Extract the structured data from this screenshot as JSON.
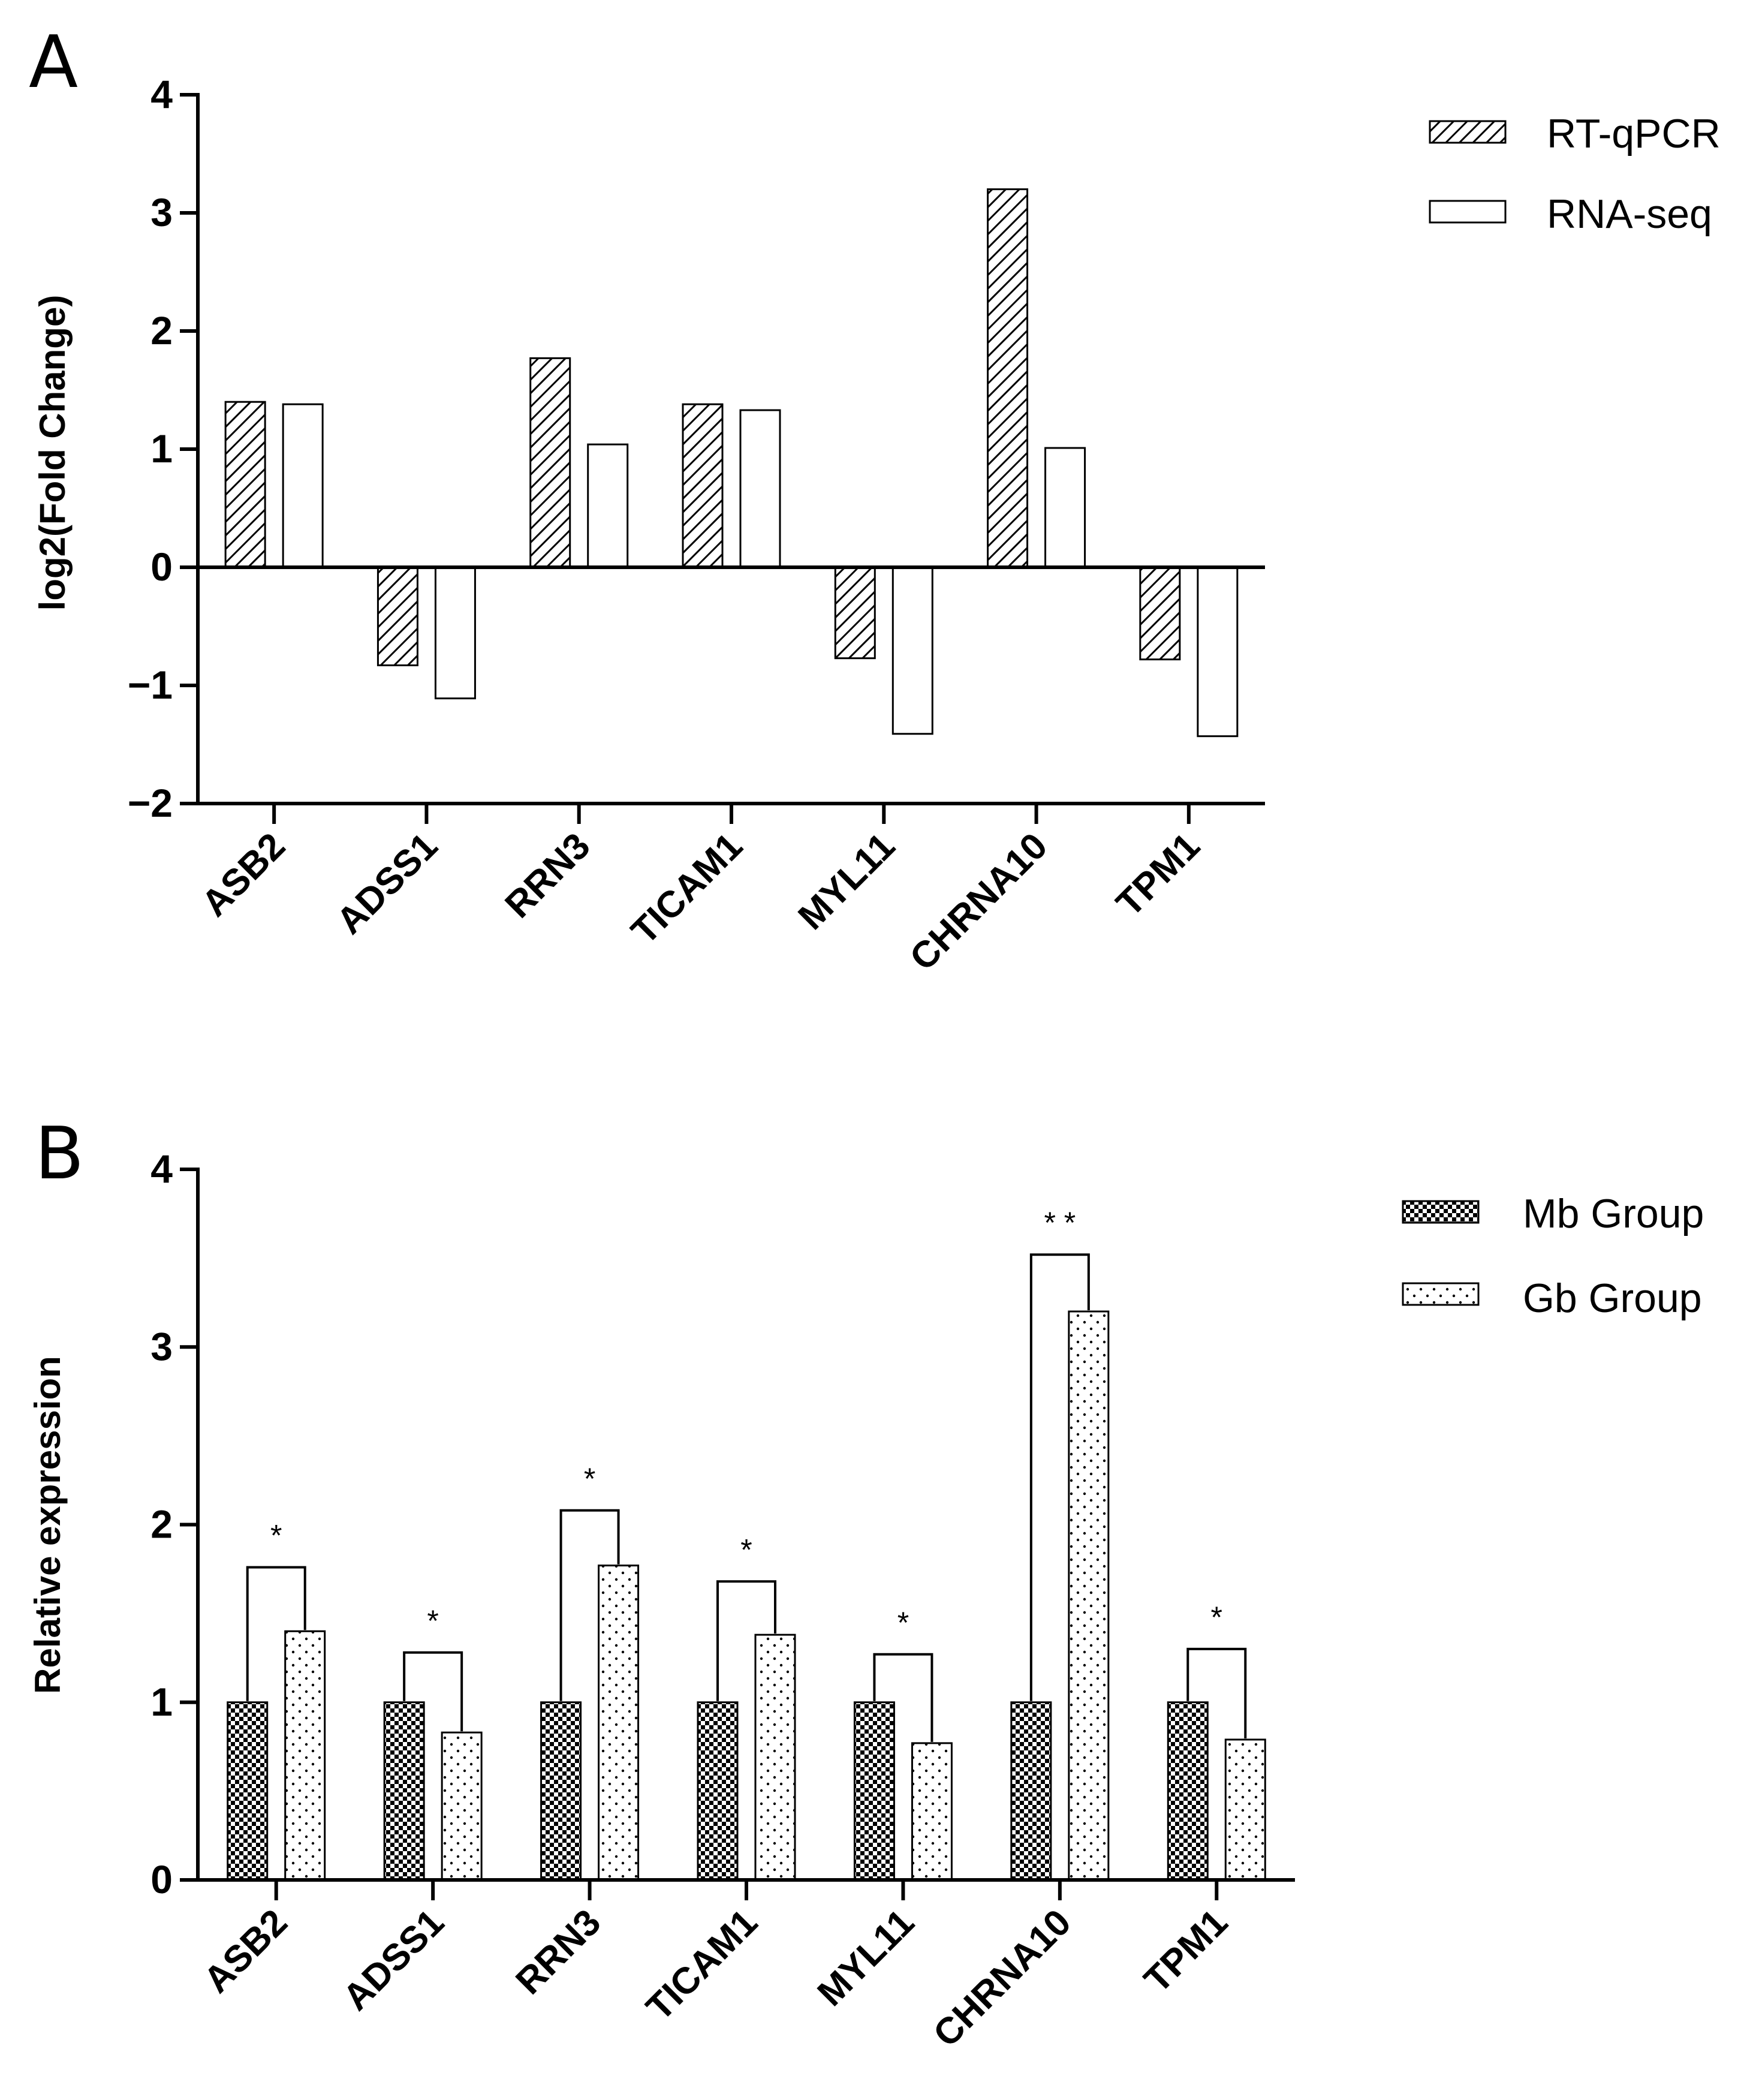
{
  "chart_data": [
    {
      "type": "bar",
      "panel_label": "A",
      "title": "",
      "xlabel": "",
      "ylabel": "log2(Fold Change)",
      "ylim": [
        -2,
        4
      ],
      "yticks": [
        -2,
        -1,
        0,
        1,
        2,
        3,
        4
      ],
      "ytick_labels": [
        "−2",
        "−1",
        "0",
        "1",
        "2",
        "3",
        "4"
      ],
      "categories": [
        "ASB2",
        "ADSS1",
        "RRN3",
        "TICAM1",
        "MYL11",
        "CHRNA10",
        "TPM1"
      ],
      "series": [
        {
          "name": "RT-qPCR",
          "pattern": "hatch",
          "values": [
            1.4,
            -0.83,
            1.77,
            1.38,
            -0.77,
            3.2,
            -0.78
          ]
        },
        {
          "name": "RNA-seq",
          "pattern": "empty",
          "values": [
            1.38,
            -1.11,
            1.04,
            1.33,
            -1.41,
            1.01,
            -1.43
          ]
        }
      ],
      "legend_position": "top-right"
    },
    {
      "type": "bar",
      "panel_label": "B",
      "title": "",
      "xlabel": "",
      "ylabel": "Relative expression",
      "ylim": [
        0,
        4
      ],
      "yticks": [
        0,
        1,
        2,
        3,
        4
      ],
      "ytick_labels": [
        "0",
        "1",
        "2",
        "3",
        "4"
      ],
      "categories": [
        "ASB2",
        "ADSS1",
        "RRN3",
        "TICAM1",
        "MYL11",
        "CHRNA10",
        "TPM1"
      ],
      "series": [
        {
          "name": "Mb Group",
          "pattern": "checker",
          "values": [
            1,
            1,
            1,
            1,
            1,
            1,
            1
          ]
        },
        {
          "name": "Gb Group",
          "pattern": "dots",
          "values": [
            1.4,
            0.83,
            1.77,
            1.38,
            0.77,
            3.2,
            0.79
          ]
        }
      ],
      "significance": [
        {
          "label": "*",
          "bracket_top": 1.76
        },
        {
          "label": "*",
          "bracket_top": 1.28
        },
        {
          "label": "*",
          "bracket_top": 2.08
        },
        {
          "label": "*",
          "bracket_top": 1.68
        },
        {
          "label": "*",
          "bracket_top": 1.27
        },
        {
          "label": "* *",
          "bracket_top": 3.52
        },
        {
          "label": "*",
          "bracket_top": 1.3
        }
      ],
      "legend_position": "top-right"
    }
  ]
}
